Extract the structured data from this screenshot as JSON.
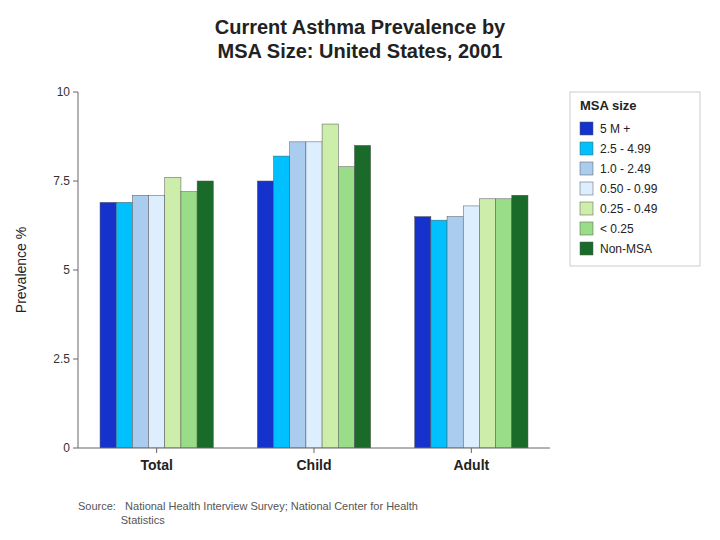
{
  "chart_data": {
    "type": "bar",
    "title": "Current Asthma Prevalence by\nMSA Size: United States, 2001",
    "y_label": "Prevalence %",
    "categories": [
      "Total",
      "Child",
      "Adult"
    ],
    "series": [
      {
        "name": "5 M +",
        "color": "#1533cc",
        "values": [
          6.9,
          7.5,
          6.5
        ]
      },
      {
        "name": "2.5 - 4.99",
        "color": "#00c0ff",
        "values": [
          6.9,
          8.2,
          6.4
        ]
      },
      {
        "name": "1.0 - 2.49",
        "color": "#aaccee",
        "values": [
          7.1,
          8.6,
          6.5
        ]
      },
      {
        "name": "0.50 - 0.99",
        "color": "#ddeeff",
        "values": [
          7.1,
          8.6,
          6.8
        ]
      },
      {
        "name": "0.25 - 0.49",
        "color": "#cceeaa",
        "values": [
          7.6,
          9.1,
          7.0
        ]
      },
      {
        "name": "< 0.25",
        "color": "#99dd88",
        "values": [
          7.2,
          7.9,
          7.0
        ]
      },
      {
        "name": "Non-MSA",
        "color": "#1a6b2a",
        "values": [
          7.5,
          8.5,
          7.1
        ]
      }
    ],
    "ylim": [
      0,
      10
    ],
    "yticks": [
      0,
      2.5,
      5,
      7.5,
      10
    ],
    "grid": false,
    "legend": "right",
    "legend_title": "MSA size",
    "source": "Source:   National Health Interview Survey; National Center for Health\n              Statistics"
  }
}
